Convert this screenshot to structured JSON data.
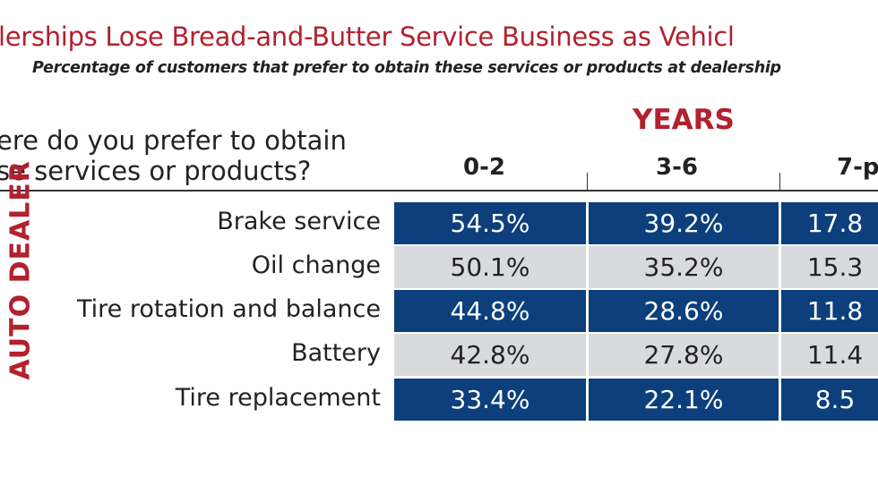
{
  "chart_data": {
    "type": "table",
    "title": "lerships Lose Bread-and-Butter Service Business as Vehicl",
    "subtitle": "Percentage of customers that prefer to obtain these services or products at dealership",
    "group_header": "YEARS",
    "question": [
      "ere do you prefer to obtain",
      "se services or products?"
    ],
    "side_label": "AUTO DEALER",
    "columns": [
      "0-2",
      "3-6",
      "7-p"
    ],
    "rows": [
      {
        "label": "Brake service",
        "values": [
          "54.5%",
          "39.2%",
          "17.8"
        ]
      },
      {
        "label": "Oil change",
        "values": [
          "50.1%",
          "35.2%",
          "15.3"
        ]
      },
      {
        "label": "Tire rotation and balance",
        "values": [
          "44.8%",
          "28.6%",
          "11.8"
        ]
      },
      {
        "label": "Battery",
        "values": [
          "42.8%",
          "27.8%",
          "11.4"
        ]
      },
      {
        "label": "Tire replacement",
        "values": [
          "33.4%",
          "22.1%",
          "8.5"
        ]
      }
    ],
    "colors": {
      "title": "#b3202e",
      "dark_row": "#0c3f7c",
      "light_row": "#d8dadd"
    }
  }
}
